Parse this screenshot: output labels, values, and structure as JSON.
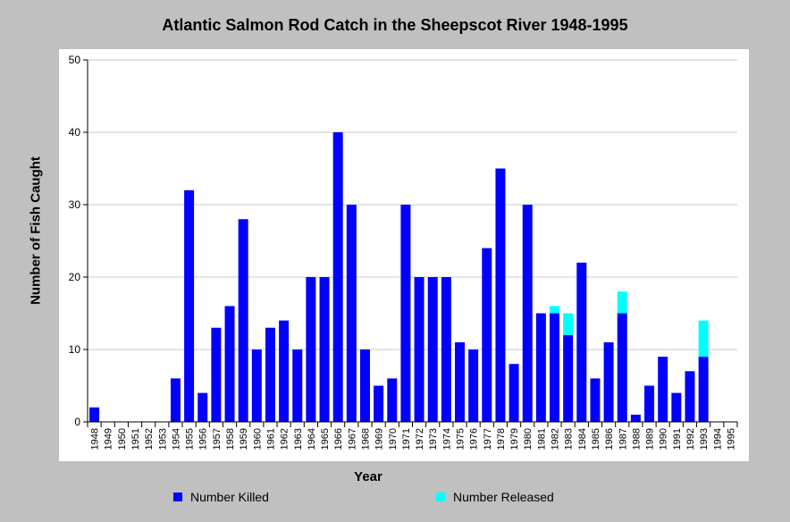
{
  "chart_data": {
    "type": "bar",
    "stacked": true,
    "title": "Atlantic Salmon Rod Catch in the Sheepscot River 1948-1995",
    "xlabel": "Year",
    "ylabel": "Number of Fish Caught",
    "ylim": [
      0,
      50
    ],
    "yticks": [
      "0",
      "10",
      "20",
      "30",
      "40",
      "50"
    ],
    "grid": true,
    "legend_position": "bottom",
    "categories": [
      "1948",
      "1949",
      "1950",
      "1951",
      "1952",
      "1953",
      "1954",
      "1955",
      "1956",
      "1957",
      "1958",
      "1959",
      "1960",
      "1961",
      "1962",
      "1963",
      "1964",
      "1965",
      "1966",
      "1967",
      "1968",
      "1969",
      "1970",
      "1971",
      "1972",
      "1973",
      "1974",
      "1975",
      "1976",
      "1977",
      "1978",
      "1979",
      "1980",
      "1981",
      "1982",
      "1983",
      "1984",
      "1985",
      "1986",
      "1987",
      "1988",
      "1989",
      "1990",
      "1991",
      "1992",
      "1993",
      "1994",
      "1995"
    ],
    "series": [
      {
        "name": "Number Killed",
        "color": "#0000ff",
        "values": [
          2,
          0,
          0,
          0,
          0,
          0,
          6,
          32,
          4,
          13,
          16,
          28,
          10,
          13,
          14,
          10,
          20,
          20,
          40,
          30,
          10,
          5,
          6,
          30,
          20,
          20,
          20,
          11,
          10,
          24,
          35,
          8,
          30,
          15,
          15,
          12,
          22,
          6,
          11,
          15,
          1,
          5,
          9,
          4,
          7,
          9,
          0,
          0
        ]
      },
      {
        "name": "Number Released",
        "color": "#00ffff",
        "values": [
          0,
          0,
          0,
          0,
          0,
          0,
          0,
          0,
          0,
          0,
          0,
          0,
          0,
          0,
          0,
          0,
          0,
          0,
          0,
          0,
          0,
          0,
          0,
          0,
          0,
          0,
          0,
          0,
          0,
          0,
          0,
          0,
          0,
          0,
          1,
          3,
          0,
          0,
          0,
          3,
          0,
          0,
          0,
          0,
          0,
          5,
          0,
          0
        ]
      }
    ]
  }
}
